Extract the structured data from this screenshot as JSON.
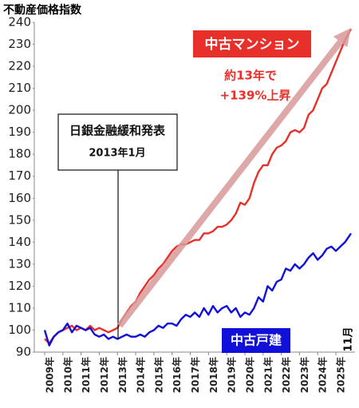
{
  "chart_data": {
    "type": "line",
    "title": "不動産価格指数",
    "x": [
      2009,
      2009.25,
      2009.5,
      2009.75,
      2010,
      2010.25,
      2010.5,
      2010.75,
      2011,
      2011.25,
      2011.5,
      2011.75,
      2012,
      2012.25,
      2012.5,
      2012.75,
      2013,
      2013.25,
      2013.5,
      2013.75,
      2014,
      2014.25,
      2014.5,
      2014.75,
      2015,
      2015.25,
      2015.5,
      2015.75,
      2016,
      2016.25,
      2016.5,
      2016.75,
      2017,
      2017.25,
      2017.5,
      2017.75,
      2018,
      2018.25,
      2018.5,
      2018.75,
      2019,
      2019.25,
      2019.5,
      2019.75,
      2020,
      2020.25,
      2020.5,
      2020.75,
      2021,
      2021.25,
      2021.5,
      2021.75,
      2022,
      2022.25,
      2022.5,
      2022.75,
      2023,
      2023.25,
      2023.5,
      2023.75,
      2024,
      2024.25,
      2024.5,
      2024.75,
      2025,
      2025.25,
      2025.5,
      2025.83
    ],
    "series": [
      {
        "name": "中古マンション",
        "color": "#e8302a",
        "values": [
          96,
          94,
          97,
          99,
          100,
          101,
          102,
          100,
          101,
          100,
          102,
          100,
          101,
          100,
          99,
          100,
          101,
          105,
          108,
          111,
          113,
          117,
          120,
          123,
          125,
          128,
          130,
          133,
          136,
          138,
          139,
          139,
          140,
          141,
          141,
          144,
          144,
          145,
          147,
          147,
          148,
          150,
          153,
          158,
          157,
          160,
          167,
          172,
          175,
          175,
          180,
          183,
          184,
          186,
          190,
          191,
          190,
          192,
          198,
          200,
          205,
          210,
          212,
          217,
          222,
          227,
          232,
          237
        ]
      },
      {
        "name": "中古戸建",
        "color": "#1010d8",
        "values": [
          100,
          93,
          97,
          99,
          100,
          103,
          99,
          102,
          101,
          100,
          101,
          98,
          97,
          98,
          96,
          97,
          96,
          97,
          98,
          97,
          97,
          98,
          97,
          99,
          100,
          102,
          101,
          103,
          103,
          102,
          105,
          107,
          106,
          108,
          106,
          110,
          107,
          111,
          108,
          110,
          111,
          108,
          110,
          106,
          108,
          107,
          110,
          115,
          113,
          120,
          118,
          122,
          123,
          128,
          127,
          130,
          128,
          130,
          133,
          135,
          132,
          134,
          137,
          138,
          136,
          138,
          140,
          144
        ]
      }
    ],
    "xlim": [
      2008.43,
      2026.05
    ],
    "xticks": [
      {
        "value": 2009,
        "label": "2009年"
      },
      {
        "value": 2010,
        "label": "2010年"
      },
      {
        "value": 2011,
        "label": "2011年"
      },
      {
        "value": 2012,
        "label": "2012年"
      },
      {
        "value": 2013,
        "label": "2013年"
      },
      {
        "value": 2014,
        "label": "2014年"
      },
      {
        "value": 2015,
        "label": "2015年"
      },
      {
        "value": 2016,
        "label": "2016年"
      },
      {
        "value": 2017,
        "label": "2017年"
      },
      {
        "value": 2018,
        "label": "2018年"
      },
      {
        "value": 2019,
        "label": "2019年"
      },
      {
        "value": 2020,
        "label": "2020年"
      },
      {
        "value": 2021,
        "label": "2021年"
      },
      {
        "value": 2022,
        "label": "2022年"
      },
      {
        "value": 2023,
        "label": "2023年"
      },
      {
        "value": 2024,
        "label": "2024年"
      },
      {
        "value": 2025,
        "label": "2025年"
      }
    ],
    "ylim": [
      90,
      240
    ],
    "yticks": [
      90,
      100,
      110,
      120,
      130,
      140,
      150,
      160,
      170,
      180,
      190,
      200,
      210,
      220,
      230,
      240
    ],
    "grid": false,
    "annotations": [
      "約13年で",
      "+139%上昇",
      "日銀金融緩和発表",
      "2013年1月",
      "11月"
    ]
  }
}
